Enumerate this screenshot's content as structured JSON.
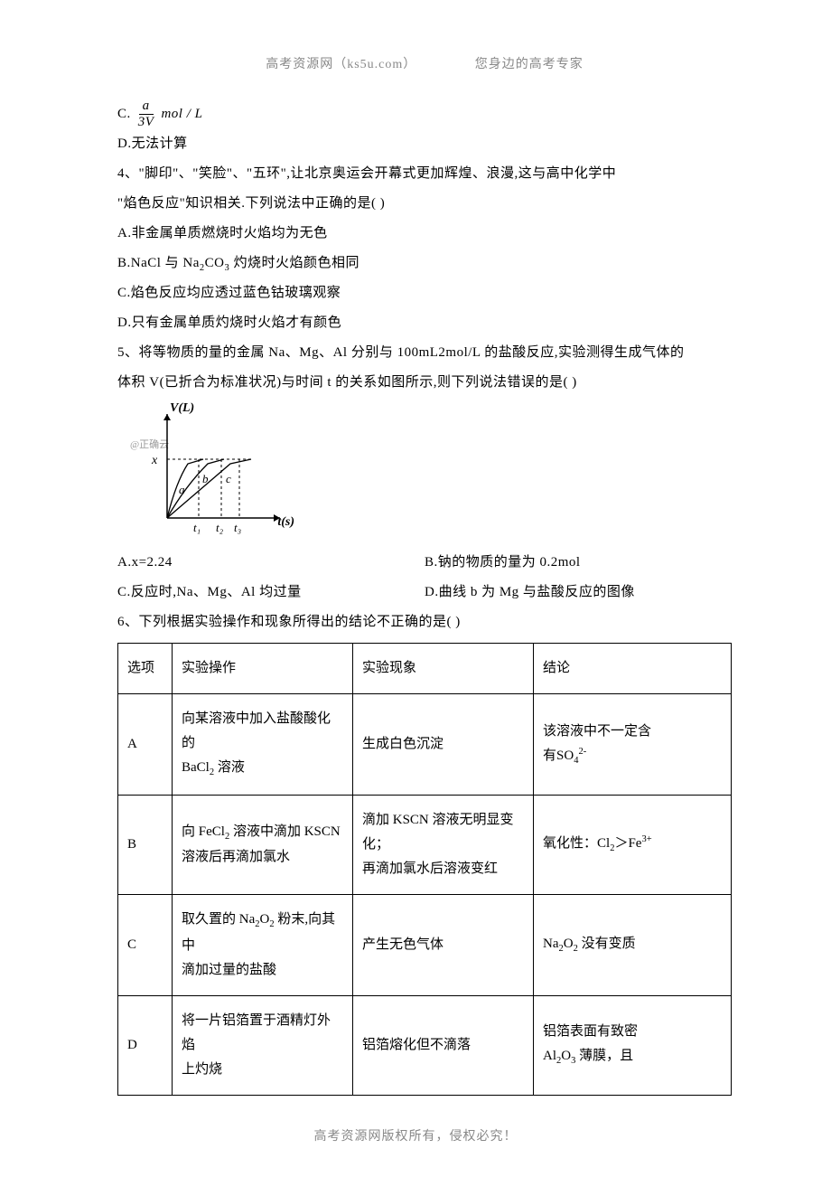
{
  "header": {
    "left": "高考资源网（ks5u.com）",
    "right": "您身边的高考专家"
  },
  "footer": "高考资源网版权所有，侵权必究！",
  "optC": {
    "prefix": "C. ",
    "frac_num": "a",
    "frac_den": "3V",
    "unit": "mol / L"
  },
  "optD": "D.无法计算",
  "q4": {
    "stem1": "4、\"脚印\"、\"笑脸\"、\"五环\",让北京奥运会开幕式更加辉煌、浪漫,这与高中化学中",
    "stem2": "\"焰色反应\"知识相关.下列说法中正确的是(        )",
    "A": "A.非金属单质燃烧时火焰均为无色",
    "B_pre": "B.NaCl 与 Na",
    "B_sub": "2",
    "B_mid": "CO",
    "B_sub2": "3",
    "B_post": " 灼烧时火焰颜色相同",
    "C": "C.焰色反应均应透过蓝色钴玻璃观察",
    "D": "D.只有金属单质灼烧时火焰才有颜色"
  },
  "q5": {
    "stem1": "5、将等物质的量的金属 Na、Mg、Al 分别与 100mL2mol/L 的盐酸反应,实验测得生成气体的",
    "stem2": "体积 V(已折合为标准状况)与时间 t 的关系如图所示,则下列说法错误的是(      )",
    "graph": {
      "ylabel": "V(L)",
      "xlabel": "t(s)",
      "x_marker": "x",
      "watermark": "@正确云",
      "ticks": [
        "t₁",
        "t₂",
        "t₃"
      ],
      "curve_labels": [
        "a",
        "b",
        "c"
      ],
      "stroke": "#000000",
      "dash": "3,3"
    },
    "A": "A.x=2.24",
    "B": "B.钠的物质的量为 0.2mol",
    "C": "C.反应时,Na、Mg、Al 均过量",
    "D": "D.曲线 b 为 Mg 与盐酸反应的图像"
  },
  "q6": {
    "stem": "6、下列根据实验操作和现象所得出的结论不正确的是(    )",
    "columns": [
      "选项",
      "实验操作",
      "实验现象",
      "结论"
    ],
    "rows": [
      {
        "opt": "A",
        "op_html": "向某溶液中加入盐酸酸化的<br>BaCl<sub>2</sub> 溶液",
        "phe_html": "生成白色沉淀",
        "con_html": "该溶液中不一定含<br>有SO<sub>4</sub><sup>2-</sup>"
      },
      {
        "opt": "B",
        "op_html": "向 FeCl<sub>2</sub> 溶液中滴加 KSCN<br>溶液后再滴加氯水",
        "phe_html": "滴加 KSCN 溶液无明显变化；<br>再滴加氯水后溶液变红",
        "con_html": "氧化性：Cl<sub>2</sub>＞Fe<sup>3+</sup>"
      },
      {
        "opt": "C",
        "op_html": "取久置的 Na<sub>2</sub>O<sub>2</sub> 粉末,向其中<br>滴加过量的盐酸",
        "phe_html": "产生无色气体",
        "con_html": "Na<sub>2</sub>O<sub>2</sub> 没有变质"
      },
      {
        "opt": "D",
        "op_html": "将一片铝箔置于酒精灯外焰<br>上灼烧",
        "phe_html": "铝箔熔化但不滴落",
        "con_html": "铝箔表面有致密<br>Al<sub>2</sub>O<sub>3</sub> 薄膜，且"
      }
    ]
  }
}
